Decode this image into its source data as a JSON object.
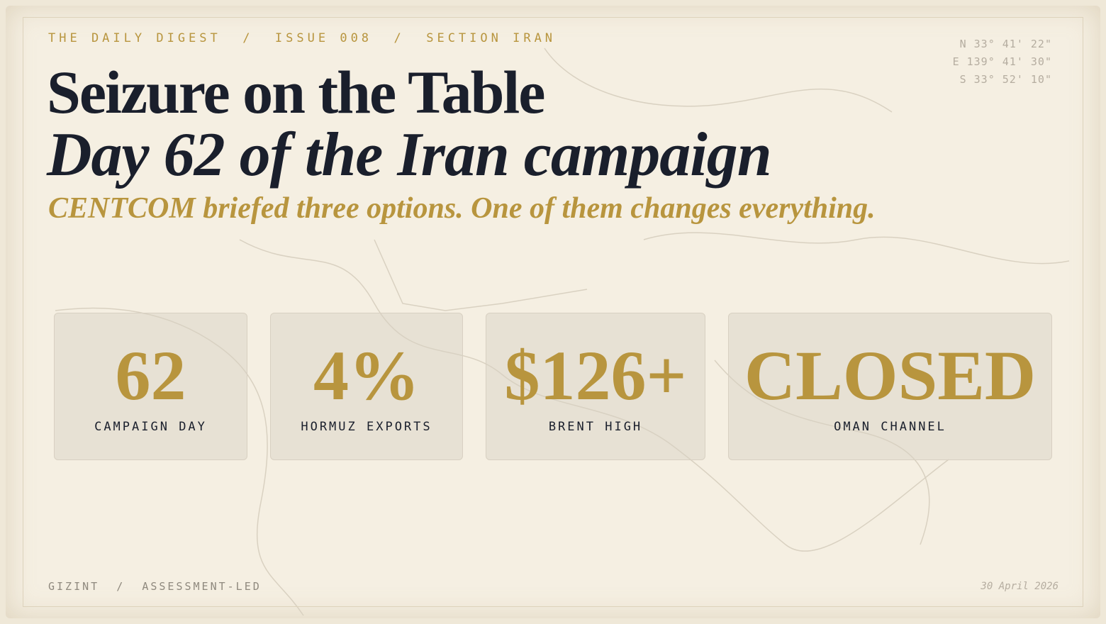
{
  "header": {
    "breadcrumb": "THE DAILY DIGEST  /  ISSUE 008  /  SECTION IRAN",
    "coordinates": [
      "N 33° 41' 22\"",
      "E 139° 41' 30\"",
      "S 33° 52' 10\""
    ]
  },
  "title": {
    "line1": "Seizure on the Table",
    "line2": "Day 62 of the Iran campaign",
    "subtitle": "CENTCOM briefed three options. One of them changes everything."
  },
  "stats": [
    {
      "value": "62",
      "label": "CAMPAIGN DAY"
    },
    {
      "value": "4%",
      "label": "HORMUZ EXPORTS"
    },
    {
      "value": "$126+",
      "label": "BRENT HIGH"
    },
    {
      "value": "CLOSED",
      "label": "OMAN CHANNEL"
    }
  ],
  "footer": {
    "source": "GIZINT  /  ASSESSMENT-LED",
    "date": "30 April 2026"
  }
}
